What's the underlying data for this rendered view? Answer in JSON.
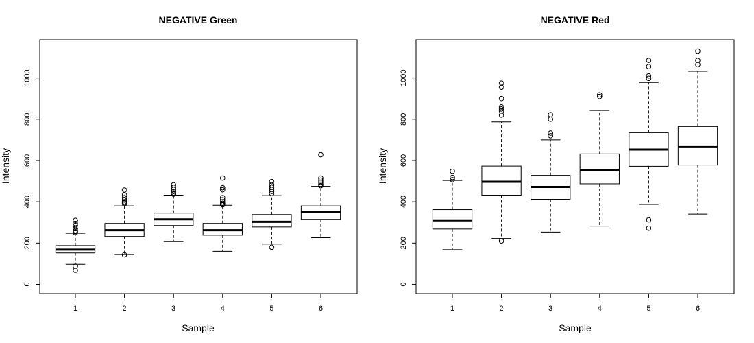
{
  "chart_data": [
    {
      "type": "boxplot",
      "title": "NEGATIVE Green",
      "xlabel": "Sample",
      "ylabel": "Intensity",
      "ylim": [
        -45,
        1185
      ],
      "yticks": [
        0,
        200,
        400,
        600,
        800,
        1000
      ],
      "categories": [
        "1",
        "2",
        "3",
        "4",
        "5",
        "6"
      ],
      "boxes": [
        {
          "min": 97,
          "q1": 152,
          "median": 168,
          "q3": 188,
          "max": 247,
          "outliers": [
            310,
            295,
            285,
            270,
            260,
            255,
            250,
            88,
            68
          ]
        },
        {
          "min": 145,
          "q1": 232,
          "median": 262,
          "q3": 295,
          "max": 380,
          "outliers": [
            457,
            433,
            420,
            408,
            400,
            395,
            390,
            143
          ]
        },
        {
          "min": 207,
          "q1": 285,
          "median": 315,
          "q3": 345,
          "max": 432,
          "outliers": [
            482,
            470,
            460,
            450,
            443,
            437
          ]
        },
        {
          "min": 160,
          "q1": 238,
          "median": 262,
          "q3": 295,
          "max": 383,
          "outliers": [
            515,
            468,
            458,
            420,
            410,
            400,
            393,
            388,
            385
          ]
        },
        {
          "min": 195,
          "q1": 278,
          "median": 303,
          "q3": 338,
          "max": 430,
          "outliers": [
            498,
            482,
            470,
            460,
            450,
            440,
            180
          ]
        },
        {
          "min": 226,
          "q1": 315,
          "median": 350,
          "q3": 380,
          "max": 475,
          "outliers": [
            628,
            515,
            505,
            495,
            485,
            478
          ]
        }
      ]
    },
    {
      "type": "boxplot",
      "title": "NEGATIVE Red",
      "xlabel": "Sample",
      "ylabel": "Intensity",
      "ylim": [
        -45,
        1185
      ],
      "yticks": [
        0,
        200,
        400,
        600,
        800,
        1000
      ],
      "categories": [
        "1",
        "2",
        "3",
        "4",
        "5",
        "6"
      ],
      "boxes": [
        {
          "min": 168,
          "q1": 268,
          "median": 310,
          "q3": 362,
          "max": 503,
          "outliers": [
            548,
            518,
            507
          ]
        },
        {
          "min": 222,
          "q1": 432,
          "median": 497,
          "q3": 573,
          "max": 787,
          "outliers": [
            975,
            955,
            900,
            860,
            850,
            840,
            820,
            210
          ]
        },
        {
          "min": 253,
          "q1": 412,
          "median": 472,
          "q3": 528,
          "max": 700,
          "outliers": [
            822,
            800,
            733,
            720
          ]
        },
        {
          "min": 282,
          "q1": 487,
          "median": 555,
          "q3": 632,
          "max": 842,
          "outliers": [
            918,
            910
          ]
        },
        {
          "min": 387,
          "q1": 572,
          "median": 653,
          "q3": 735,
          "max": 978,
          "outliers": [
            1085,
            1055,
            1010,
            998,
            312,
            272
          ]
        },
        {
          "min": 340,
          "q1": 578,
          "median": 665,
          "q3": 765,
          "max": 1032,
          "outliers": [
            1130,
            1085,
            1065
          ]
        }
      ]
    }
  ]
}
